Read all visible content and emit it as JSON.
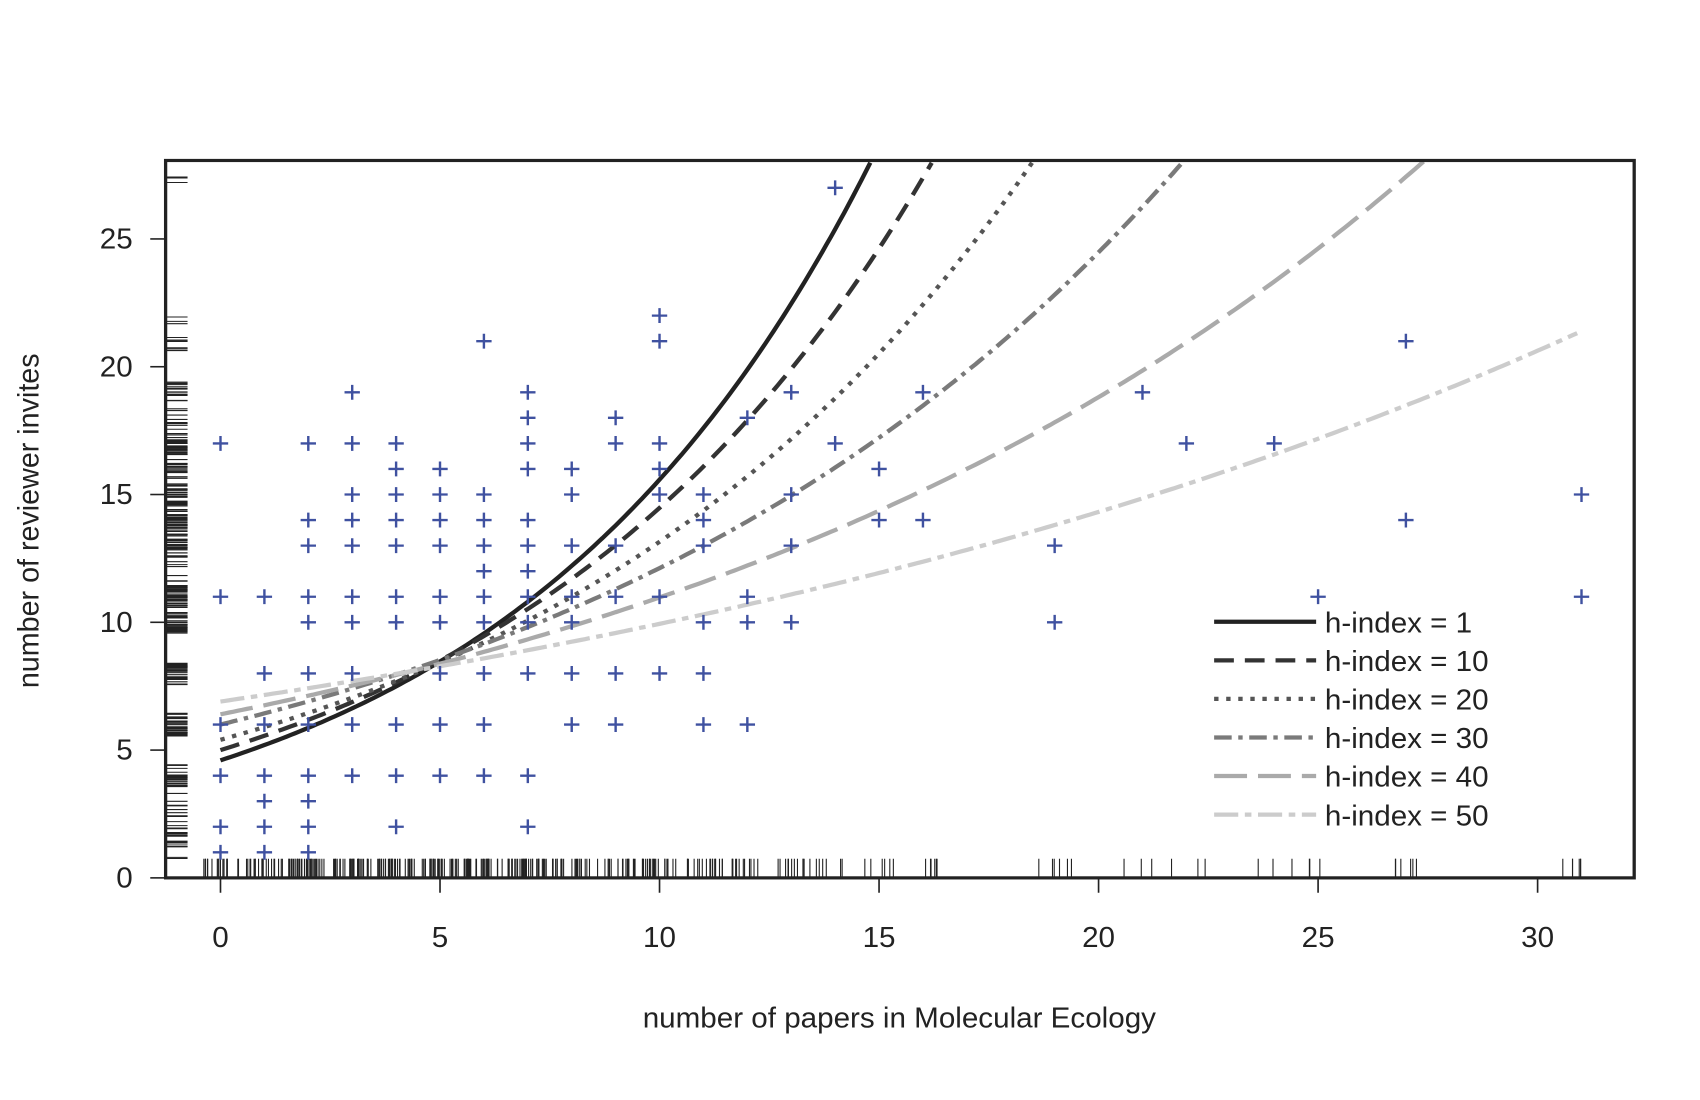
{
  "chart_data": {
    "type": "scatter",
    "title": "",
    "xlabel": "number of papers in Molecular Ecology",
    "ylabel": "number of reviewer invites",
    "xlim": [
      -1.25,
      32.2
    ],
    "ylim": [
      0,
      28.07
    ],
    "xticks": [
      0,
      5,
      10,
      15,
      20,
      25,
      30
    ],
    "yticks": [
      0,
      5,
      10,
      15,
      20,
      25
    ],
    "grid": false,
    "point_color": "#3f51a0",
    "points": [
      [
        0,
        17
      ],
      [
        0,
        11
      ],
      [
        0,
        6
      ],
      [
        0,
        4
      ],
      [
        0,
        2
      ],
      [
        0,
        1
      ],
      [
        1,
        11
      ],
      [
        1,
        8
      ],
      [
        1,
        6
      ],
      [
        1,
        4
      ],
      [
        1,
        3
      ],
      [
        1,
        2
      ],
      [
        1,
        1
      ],
      [
        2,
        17
      ],
      [
        2,
        14
      ],
      [
        2,
        13
      ],
      [
        2,
        11
      ],
      [
        2,
        10
      ],
      [
        2,
        8
      ],
      [
        2,
        6
      ],
      [
        2,
        4
      ],
      [
        2,
        3
      ],
      [
        2,
        2
      ],
      [
        2,
        1
      ],
      [
        3,
        19
      ],
      [
        3,
        17
      ],
      [
        3,
        15
      ],
      [
        3,
        14
      ],
      [
        3,
        13
      ],
      [
        3,
        11
      ],
      [
        3,
        10
      ],
      [
        3,
        8
      ],
      [
        3,
        6
      ],
      [
        3,
        4
      ],
      [
        4,
        17
      ],
      [
        4,
        16
      ],
      [
        4,
        15
      ],
      [
        4,
        14
      ],
      [
        4,
        13
      ],
      [
        4,
        11
      ],
      [
        4,
        10
      ],
      [
        4,
        6
      ],
      [
        4,
        4
      ],
      [
        4,
        2
      ],
      [
        5,
        16
      ],
      [
        5,
        15
      ],
      [
        5,
        14
      ],
      [
        5,
        13
      ],
      [
        5,
        11
      ],
      [
        5,
        10
      ],
      [
        5,
        8
      ],
      [
        5,
        6
      ],
      [
        5,
        4
      ],
      [
        6,
        21
      ],
      [
        6,
        15
      ],
      [
        6,
        14
      ],
      [
        6,
        13
      ],
      [
        6,
        12
      ],
      [
        6,
        11
      ],
      [
        6,
        10
      ],
      [
        6,
        8
      ],
      [
        6,
        6
      ],
      [
        6,
        4
      ],
      [
        7,
        19
      ],
      [
        7,
        18
      ],
      [
        7,
        17
      ],
      [
        7,
        16
      ],
      [
        7,
        14
      ],
      [
        7,
        13
      ],
      [
        7,
        12
      ],
      [
        7,
        11
      ],
      [
        7,
        10
      ],
      [
        7,
        8
      ],
      [
        7,
        4
      ],
      [
        7,
        2
      ],
      [
        8,
        16
      ],
      [
        8,
        15
      ],
      [
        8,
        13
      ],
      [
        8,
        11
      ],
      [
        8,
        10
      ],
      [
        8,
        8
      ],
      [
        8,
        6
      ],
      [
        9,
        18
      ],
      [
        9,
        17
      ],
      [
        9,
        13
      ],
      [
        9,
        11
      ],
      [
        9,
        8
      ],
      [
        9,
        6
      ],
      [
        10,
        22
      ],
      [
        10,
        21
      ],
      [
        10,
        17
      ],
      [
        10,
        16
      ],
      [
        10,
        15
      ],
      [
        10,
        11
      ],
      [
        10,
        8
      ],
      [
        11,
        15
      ],
      [
        11,
        14
      ],
      [
        11,
        13
      ],
      [
        11,
        10
      ],
      [
        11,
        8
      ],
      [
        11,
        6
      ],
      [
        12,
        18
      ],
      [
        12,
        11
      ],
      [
        12,
        10
      ],
      [
        12,
        6
      ],
      [
        13,
        19
      ],
      [
        13,
        15
      ],
      [
        13,
        13
      ],
      [
        13,
        10
      ],
      [
        14,
        27
      ],
      [
        14,
        17
      ],
      [
        15,
        16
      ],
      [
        15,
        14
      ],
      [
        16,
        19
      ],
      [
        16,
        14
      ],
      [
        19,
        13
      ],
      [
        19,
        10
      ],
      [
        21,
        19
      ],
      [
        22,
        17
      ],
      [
        24,
        17
      ],
      [
        25,
        11
      ],
      [
        27,
        21
      ],
      [
        27,
        14
      ],
      [
        31,
        15
      ],
      [
        31,
        11
      ]
    ],
    "series": [
      {
        "name": "h-index = 1",
        "label": "h-index = 1",
        "intercept": 4.6,
        "rate": 0.122,
        "color": "#222222",
        "dash": "none"
      },
      {
        "name": "h-index = 10",
        "label": "h-index = 10",
        "intercept": 5.0,
        "rate": 0.1063,
        "color": "#333333",
        "dash": "18,10"
      },
      {
        "name": "h-index = 20",
        "label": "h-index = 20",
        "intercept": 5.4,
        "rate": 0.089,
        "color": "#555555",
        "dash": "4,7"
      },
      {
        "name": "h-index = 30",
        "label": "h-index = 30",
        "intercept": 6.0,
        "rate": 0.0703,
        "color": "#7a7a7a",
        "dash": "16,6,4,6"
      },
      {
        "name": "h-index = 40",
        "label": "h-index = 40",
        "intercept": 6.4,
        "rate": 0.0539,
        "color": "#aaaaaa",
        "dash": "30,10"
      },
      {
        "name": "h-index = 50",
        "label": "h-index = 50",
        "intercept": 6.9,
        "rate": 0.0365,
        "color": "#cccccc",
        "dash": "22,6,6,6"
      }
    ],
    "legend_position": "bottom-right"
  }
}
